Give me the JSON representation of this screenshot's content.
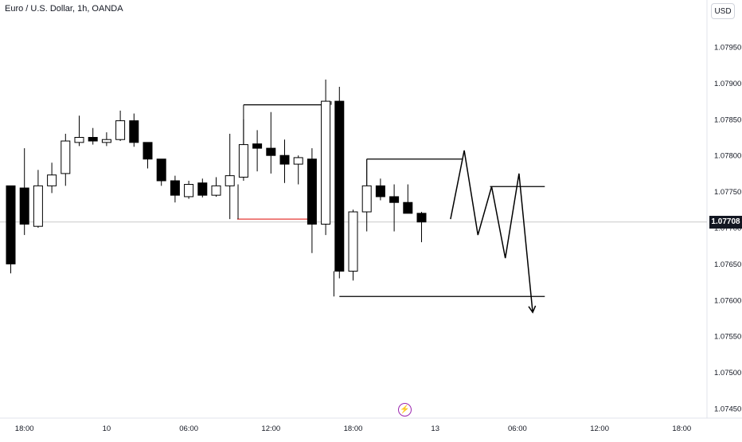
{
  "header": {
    "title": "Euro / U.S. Dollar, 1h, OANDA",
    "currency_label": "USD"
  },
  "last_price": "1.07708",
  "events_icon": "lightning-bolt-icon",
  "colors": {
    "up_candle_fill": "#ffffff",
    "down_candle_fill": "#000000",
    "candle_border": "#000000",
    "support_line": "#e53935",
    "price_line": "#c9c9c9",
    "events_icon": "#9c27b0"
  },
  "chart_data": {
    "type": "candlestick",
    "y_axis": {
      "range": [
        1.0743,
        1.0799
      ],
      "ticks": [
        "1.07950",
        "1.07900",
        "1.07850",
        "1.07800",
        "1.07750",
        "1.07700",
        "1.07650",
        "1.07600",
        "1.07550",
        "1.07500",
        "1.07450"
      ],
      "position": "right"
    },
    "x_axis": {
      "ticks": [
        {
          "label": "18:00",
          "index": 1
        },
        {
          "label": "10",
          "index": 7
        },
        {
          "label": "06:00",
          "index": 13
        },
        {
          "label": "12:00",
          "index": 19
        },
        {
          "label": "18:00",
          "index": 25
        },
        {
          "label": "13",
          "index": 31
        },
        {
          "label": "06:00",
          "index": 37
        },
        {
          "label": "12:00",
          "index": 43
        },
        {
          "label": "18:00",
          "index": 49
        }
      ]
    },
    "candles": [
      {
        "o": 1.07758,
        "h": 1.07758,
        "l": 1.07637,
        "c": 1.0765
      },
      {
        "o": 1.07755,
        "h": 1.0781,
        "l": 1.0769,
        "c": 1.07705
      },
      {
        "o": 1.07702,
        "h": 1.0778,
        "l": 1.077,
        "c": 1.07758
      },
      {
        "o": 1.07758,
        "h": 1.0779,
        "l": 1.07748,
        "c": 1.07773
      },
      {
        "o": 1.07775,
        "h": 1.0783,
        "l": 1.07758,
        "c": 1.0782
      },
      {
        "o": 1.07818,
        "h": 1.07855,
        "l": 1.07813,
        "c": 1.07825
      },
      {
        "o": 1.07825,
        "h": 1.07838,
        "l": 1.07815,
        "c": 1.0782
      },
      {
        "o": 1.07818,
        "h": 1.07832,
        "l": 1.07813,
        "c": 1.07822
      },
      {
        "o": 1.07822,
        "h": 1.07862,
        "l": 1.0782,
        "c": 1.07848
      },
      {
        "o": 1.07848,
        "h": 1.07858,
        "l": 1.07812,
        "c": 1.07818
      },
      {
        "o": 1.07818,
        "h": 1.07818,
        "l": 1.07782,
        "c": 1.07795
      },
      {
        "o": 1.07795,
        "h": 1.07795,
        "l": 1.07758,
        "c": 1.07765
      },
      {
        "o": 1.07765,
        "h": 1.07772,
        "l": 1.07735,
        "c": 1.07745
      },
      {
        "o": 1.07743,
        "h": 1.07765,
        "l": 1.0774,
        "c": 1.0776
      },
      {
        "o": 1.07762,
        "h": 1.07768,
        "l": 1.07742,
        "c": 1.07745
      },
      {
        "o": 1.07745,
        "h": 1.0777,
        "l": 1.07743,
        "c": 1.07758
      },
      {
        "o": 1.07758,
        "h": 1.0783,
        "l": 1.07712,
        "c": 1.07772
      },
      {
        "o": 1.0777,
        "h": 1.0785,
        "l": 1.07765,
        "c": 1.07815
      },
      {
        "o": 1.07816,
        "h": 1.07835,
        "l": 1.07778,
        "c": 1.0781
      },
      {
        "o": 1.0781,
        "h": 1.0786,
        "l": 1.07775,
        "c": 1.078
      },
      {
        "o": 1.078,
        "h": 1.07822,
        "l": 1.07762,
        "c": 1.07788
      },
      {
        "o": 1.07788,
        "h": 1.078,
        "l": 1.0776,
        "c": 1.07797
      },
      {
        "o": 1.07795,
        "h": 1.0781,
        "l": 1.07665,
        "c": 1.07705
      },
      {
        "o": 1.07705,
        "h": 1.07905,
        "l": 1.0769,
        "c": 1.07875
      },
      {
        "o": 1.07875,
        "h": 1.07895,
        "l": 1.0763,
        "c": 1.0764
      },
      {
        "o": 1.0764,
        "h": 1.07725,
        "l": 1.07627,
        "c": 1.07722
      },
      {
        "o": 1.07722,
        "h": 1.07795,
        "l": 1.07695,
        "c": 1.07758
      },
      {
        "o": 1.07758,
        "h": 1.07768,
        "l": 1.07738,
        "c": 1.07743
      },
      {
        "o": 1.07743,
        "h": 1.0776,
        "l": 1.07695,
        "c": 1.07735
      },
      {
        "o": 1.07735,
        "h": 1.0776,
        "l": 1.0772,
        "c": 1.0772
      },
      {
        "o": 1.0772,
        "h": 1.07722,
        "l": 1.0768,
        "c": 1.07708
      }
    ],
    "annotations": {
      "horizontal_lines": [
        {
          "start_index": 17,
          "end_index": 22,
          "price": 1.07712,
          "color": "#e53935"
        },
        {
          "start_index": 17,
          "end_index": 23,
          "price": 1.0787,
          "color": "#000000"
        },
        {
          "start_index": 26,
          "end_index": 33,
          "price": 1.07795,
          "color": "#000000"
        },
        {
          "start_index": 35,
          "end_index": 39,
          "price": 1.07757,
          "color": "#000000"
        },
        {
          "start_index": 24,
          "end_index": 39,
          "price": 1.07605,
          "color": "#000000"
        }
      ],
      "projection_path": [
        {
          "i": 32,
          "p": 1.07712
        },
        {
          "i": 33,
          "p": 1.07807
        },
        {
          "i": 34,
          "p": 1.0769
        },
        {
          "i": 35,
          "p": 1.07757
        },
        {
          "i": 36,
          "p": 1.07658
        },
        {
          "i": 37,
          "p": 1.07775
        },
        {
          "i": 38,
          "p": 1.07583
        }
      ],
      "price_line": 1.07708
    }
  }
}
